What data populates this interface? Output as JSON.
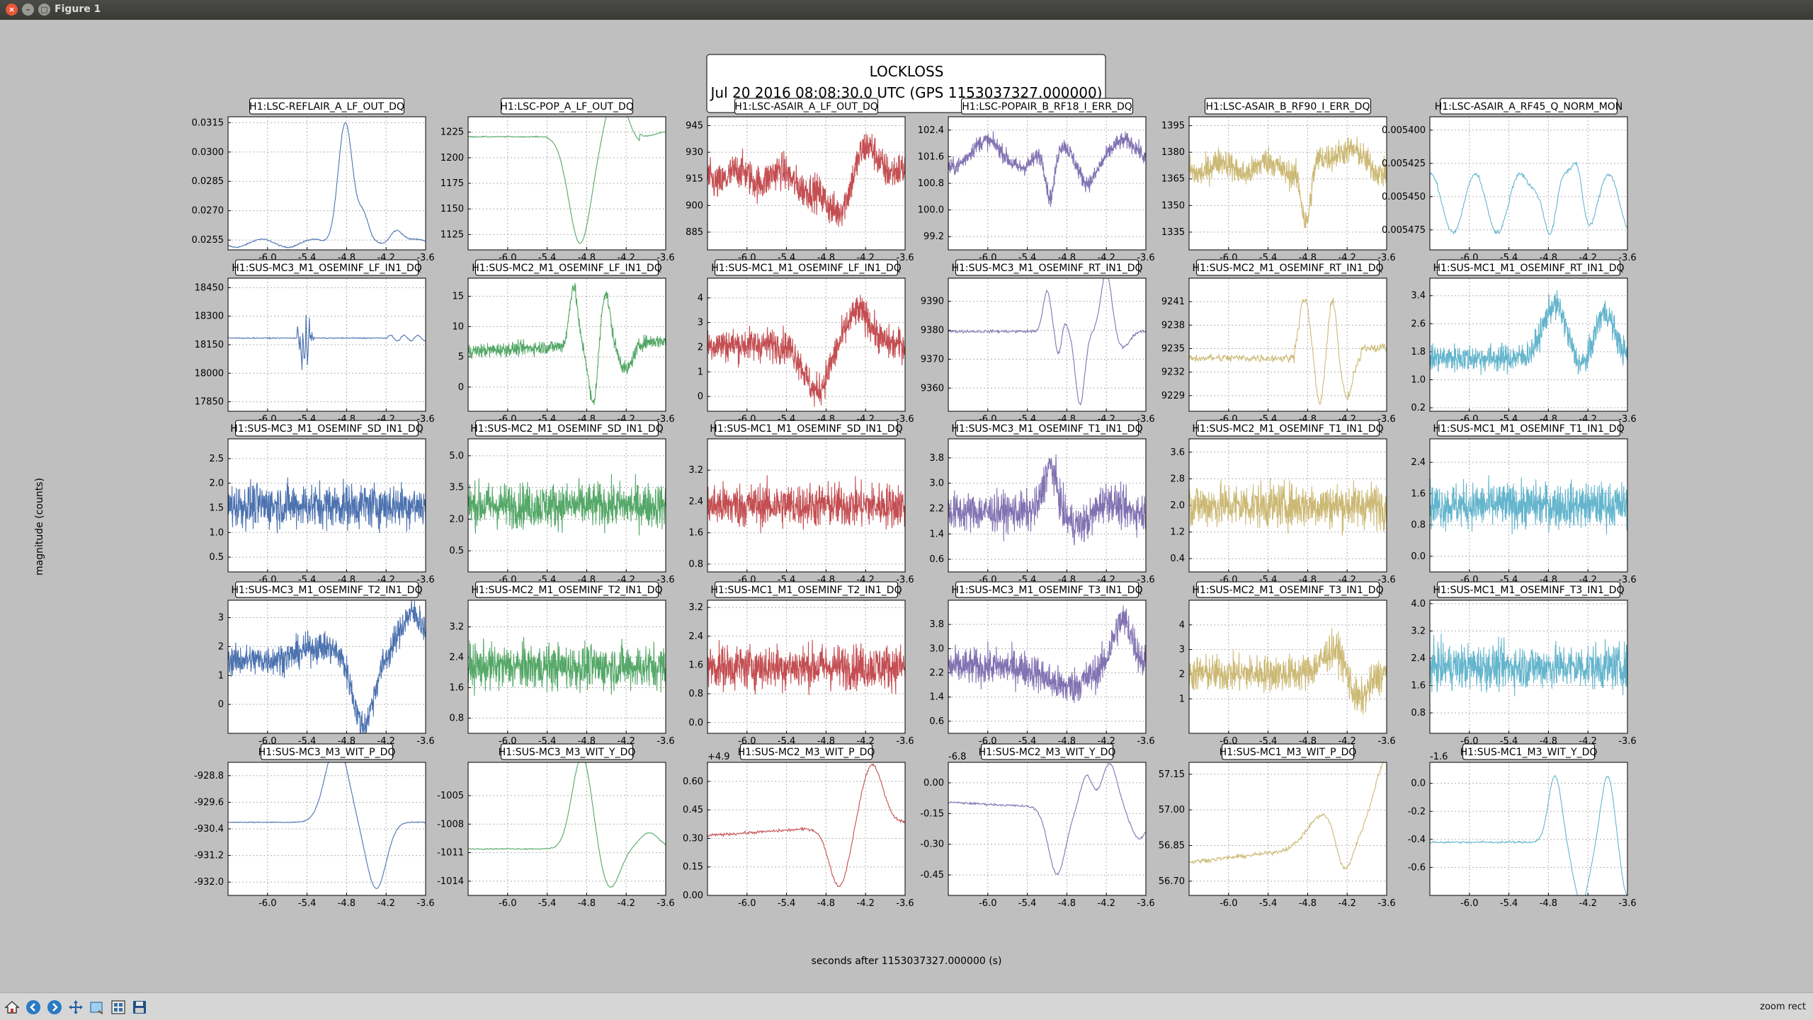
{
  "window": {
    "title": "Figure 1"
  },
  "figure": {
    "suptitle_line1": "LOCKLOSS",
    "suptitle_line2": "Jul 20 2016 08:08:30.0 UTC (GPS 1153037327.000000)",
    "ylabel": "magnitude (counts)",
    "xlabel": "seconds after 1153037327.000000 (s)"
  },
  "toolbar": {
    "buttons": [
      {
        "name": "home-button",
        "icon": "home-icon"
      },
      {
        "name": "back-button",
        "icon": "back-arrow-icon"
      },
      {
        "name": "forward-button",
        "icon": "forward-arrow-icon"
      },
      {
        "name": "pan-button",
        "icon": "pan-icon"
      },
      {
        "name": "zoom-button",
        "icon": "zoom-rect-icon"
      },
      {
        "name": "subplots-button",
        "icon": "subplots-icon"
      },
      {
        "name": "save-button",
        "icon": "save-icon"
      }
    ],
    "mode": "zoom rect"
  },
  "chart_data": {
    "type": "line",
    "rows": 5,
    "cols": 6,
    "colors": [
      "#4c72b0",
      "#55a868",
      "#c44e52",
      "#8172b2",
      "#ccb974",
      "#64b5cd"
    ],
    "xlim": [
      -6.6,
      -3.6
    ],
    "xticks": [
      "-6.0",
      "-5.4",
      "-4.8",
      "-4.2",
      "-3.6"
    ],
    "grid": true,
    "subplots": [
      {
        "title": "H1:LSC-REFLAIR_A_LF_OUT_DQ",
        "yticks": [
          "0.0315",
          "0.0300",
          "0.0285",
          "0.0270",
          "0.0255"
        ],
        "ylim": [
          0.025,
          0.0318
        ],
        "shape": "reflair",
        "offset": ""
      },
      {
        "title": "H1:LSC-POP_A_LF_OUT_DQ",
        "yticks": [
          "1225",
          "1200",
          "1175",
          "1150",
          "1125"
        ],
        "ylim": [
          1110,
          1240
        ],
        "shape": "pop",
        "offset": ""
      },
      {
        "title": "H1:LSC-ASAIR_A_LF_OUT_DQ",
        "yticks": [
          "945",
          "930",
          "915",
          "900",
          "885"
        ],
        "ylim": [
          875,
          950
        ],
        "shape": "asair",
        "offset": ""
      },
      {
        "title": "H1:LSC-POPAIR_B_RF18_I_ERR_DQ",
        "yticks": [
          "102.4",
          "101.6",
          "100.8",
          "100.0",
          "99.2"
        ],
        "ylim": [
          98.8,
          102.8
        ],
        "shape": "popair",
        "offset": ""
      },
      {
        "title": "H1:LSC-ASAIR_B_RF90_I_ERR_DQ",
        "yticks": [
          "1395",
          "1380",
          "1365",
          "1350",
          "1335"
        ],
        "ylim": [
          1325,
          1400
        ],
        "shape": "rf90",
        "offset": ""
      },
      {
        "title": "H1:LSC-ASAIR_A_RF45_Q_NORM_MON",
        "yticks": [
          "0.005400",
          "0.005425",
          "0.005450",
          "0.005475"
        ],
        "ylim": [
          0.00549,
          0.00539
        ],
        "shape": "rf45",
        "offset": ""
      },
      {
        "title": "H1:SUS-MC3_M1_OSEMINF_LF_IN1_DQ",
        "yticks": [
          "18450",
          "18300",
          "18150",
          "18000",
          "17850"
        ],
        "ylim": [
          17800,
          18500
        ],
        "shape": "mc3lf",
        "offset": ""
      },
      {
        "title": "H1:SUS-MC2_M1_OSEMINF_LF_IN1_DQ",
        "yticks": [
          "15",
          "10",
          "5",
          "0"
        ],
        "ylim": [
          -4,
          18
        ],
        "shape": "mc2lf",
        "offset": ""
      },
      {
        "title": "H1:SUS-MC1_M1_OSEMINF_LF_IN1_DQ",
        "yticks": [
          "4",
          "3",
          "2",
          "1",
          "0"
        ],
        "ylim": [
          -0.6,
          4.8
        ],
        "shape": "mc1lf",
        "offset": ""
      },
      {
        "title": "H1:SUS-MC3_M1_OSEMINF_RT_IN1_DQ",
        "yticks": [
          "9390",
          "9380",
          "9370",
          "9360"
        ],
        "ylim": [
          9352,
          9398
        ],
        "shape": "mc3rt",
        "offset": ""
      },
      {
        "title": "H1:SUS-MC2_M1_OSEMINF_RT_IN1_DQ",
        "yticks": [
          "9241",
          "9238",
          "9235",
          "9232",
          "9229"
        ],
        "ylim": [
          9227,
          9244
        ],
        "shape": "mc2rt",
        "offset": ""
      },
      {
        "title": "H1:SUS-MC1_M1_OSEMINF_RT_IN1_DQ",
        "yticks": [
          "3.4",
          "2.6",
          "1.8",
          "1.0",
          "0.2"
        ],
        "ylim": [
          0.1,
          3.9
        ],
        "shape": "mc1rt",
        "offset": ""
      },
      {
        "title": "H1:SUS-MC3_M1_OSEMINF_SD_IN1_DQ",
        "yticks": [
          "2.5",
          "2.0",
          "1.5",
          "1.0",
          "0.5"
        ],
        "ylim": [
          0.2,
          2.9
        ],
        "shape": "noise",
        "offset": ""
      },
      {
        "title": "H1:SUS-MC2_M1_OSEMINF_SD_IN1_DQ",
        "yticks": [
          "5.0",
          "3.5",
          "2.0",
          "0.5"
        ],
        "ylim": [
          -0.5,
          5.8
        ],
        "shape": "noise",
        "offset": ""
      },
      {
        "title": "H1:SUS-MC1_M1_OSEMINF_SD_IN1_DQ",
        "yticks": [
          "3.2",
          "2.4",
          "1.6",
          "0.8"
        ],
        "ylim": [
          0.6,
          4.0
        ],
        "shape": "noise",
        "offset": ""
      },
      {
        "title": "H1:SUS-MC3_M1_OSEMINF_T1_IN1_DQ",
        "yticks": [
          "3.8",
          "3.0",
          "2.2",
          "1.4",
          "0.6"
        ],
        "ylim": [
          0.2,
          4.4
        ],
        "shape": "mc3t1",
        "offset": ""
      },
      {
        "title": "H1:SUS-MC2_M1_OSEMINF_T1_IN1_DQ",
        "yticks": [
          "3.6",
          "2.8",
          "2.0",
          "1.2",
          "0.4"
        ],
        "ylim": [
          0.0,
          4.0
        ],
        "shape": "noise",
        "offset": ""
      },
      {
        "title": "H1:SUS-MC1_M1_OSEMINF_T1_IN1_DQ",
        "yticks": [
          "2.4",
          "1.6",
          "0.8",
          "0.0"
        ],
        "ylim": [
          -0.4,
          3.0
        ],
        "shape": "noise",
        "offset": ""
      },
      {
        "title": "H1:SUS-MC3_M1_OSEMINF_T2_IN1_DQ",
        "yticks": [
          "3",
          "2",
          "1",
          "0"
        ],
        "ylim": [
          -1.0,
          3.6
        ],
        "shape": "mc3t2",
        "offset": ""
      },
      {
        "title": "H1:SUS-MC2_M1_OSEMINF_T2_IN1_DQ",
        "yticks": [
          "3.2",
          "2.4",
          "1.6",
          "0.8"
        ],
        "ylim": [
          0.4,
          3.9
        ],
        "shape": "noise",
        "offset": ""
      },
      {
        "title": "H1:SUS-MC1_M1_OSEMINF_T2_IN1_DQ",
        "yticks": [
          "3.2",
          "2.4",
          "1.6",
          "0.8",
          "0.0"
        ],
        "ylim": [
          -0.3,
          3.4
        ],
        "shape": "noise",
        "offset": ""
      },
      {
        "title": "H1:SUS-MC3_M1_OSEMINF_T3_IN1_DQ",
        "yticks": [
          "3.8",
          "3.0",
          "2.2",
          "1.4",
          "0.6"
        ],
        "ylim": [
          0.2,
          4.6
        ],
        "shape": "mc3t3",
        "offset": ""
      },
      {
        "title": "H1:SUS-MC2_M1_OSEMINF_T3_IN1_DQ",
        "yticks": [
          "4",
          "3",
          "2",
          "1"
        ],
        "ylim": [
          -0.4,
          5.0
        ],
        "shape": "mc2t3",
        "offset": ""
      },
      {
        "title": "H1:SUS-MC1_M1_OSEMINF_T3_IN1_DQ",
        "yticks": [
          "4.0",
          "3.2",
          "2.4",
          "1.6",
          "0.8"
        ],
        "ylim": [
          0.2,
          4.1
        ],
        "shape": "noise",
        "offset": ""
      },
      {
        "title": "H1:SUS-MC3_M3_WIT_P_DQ",
        "yticks": [
          "-928.8",
          "-929.6",
          "-930.4",
          "-931.2",
          "-932.0"
        ],
        "ylim": [
          -932.4,
          -928.4
        ],
        "shape": "witp3",
        "offset": ""
      },
      {
        "title": "H1:SUS-MC3_M3_WIT_Y_DQ",
        "yticks": [
          "-1005",
          "-1008",
          "-1011",
          "-1014"
        ],
        "ylim": [
          -1015.5,
          -1001.5
        ],
        "shape": "wity3",
        "offset": ""
      },
      {
        "title": "H1:SUS-MC2_M3_WIT_P_DQ",
        "yticks": [
          "0.60",
          "0.45",
          "0.30",
          "0.15",
          "0.00"
        ],
        "ylim": [
          0.0,
          0.7
        ],
        "shape": "witp2",
        "offset": "+4.9"
      },
      {
        "title": "H1:SUS-MC2_M3_WIT_Y_DQ",
        "yticks": [
          "0.00",
          "-0.15",
          "-0.30",
          "-0.45"
        ],
        "ylim": [
          -0.55,
          0.1
        ],
        "shape": "wity2",
        "offset": "-6.8"
      },
      {
        "title": "H1:SUS-MC1_M3_WIT_P_DQ",
        "yticks": [
          "57.15",
          "57.00",
          "56.85",
          "56.70"
        ],
        "ylim": [
          56.64,
          57.2
        ],
        "shape": "witp1",
        "offset": ""
      },
      {
        "title": "H1:SUS-MC1_M3_WIT_Y_DQ",
        "yticks": [
          "0.0",
          "-0.2",
          "-0.4",
          "-0.6"
        ],
        "ylim": [
          -0.8,
          0.15
        ],
        "shape": "wity1",
        "offset": "-1.6"
      }
    ]
  }
}
